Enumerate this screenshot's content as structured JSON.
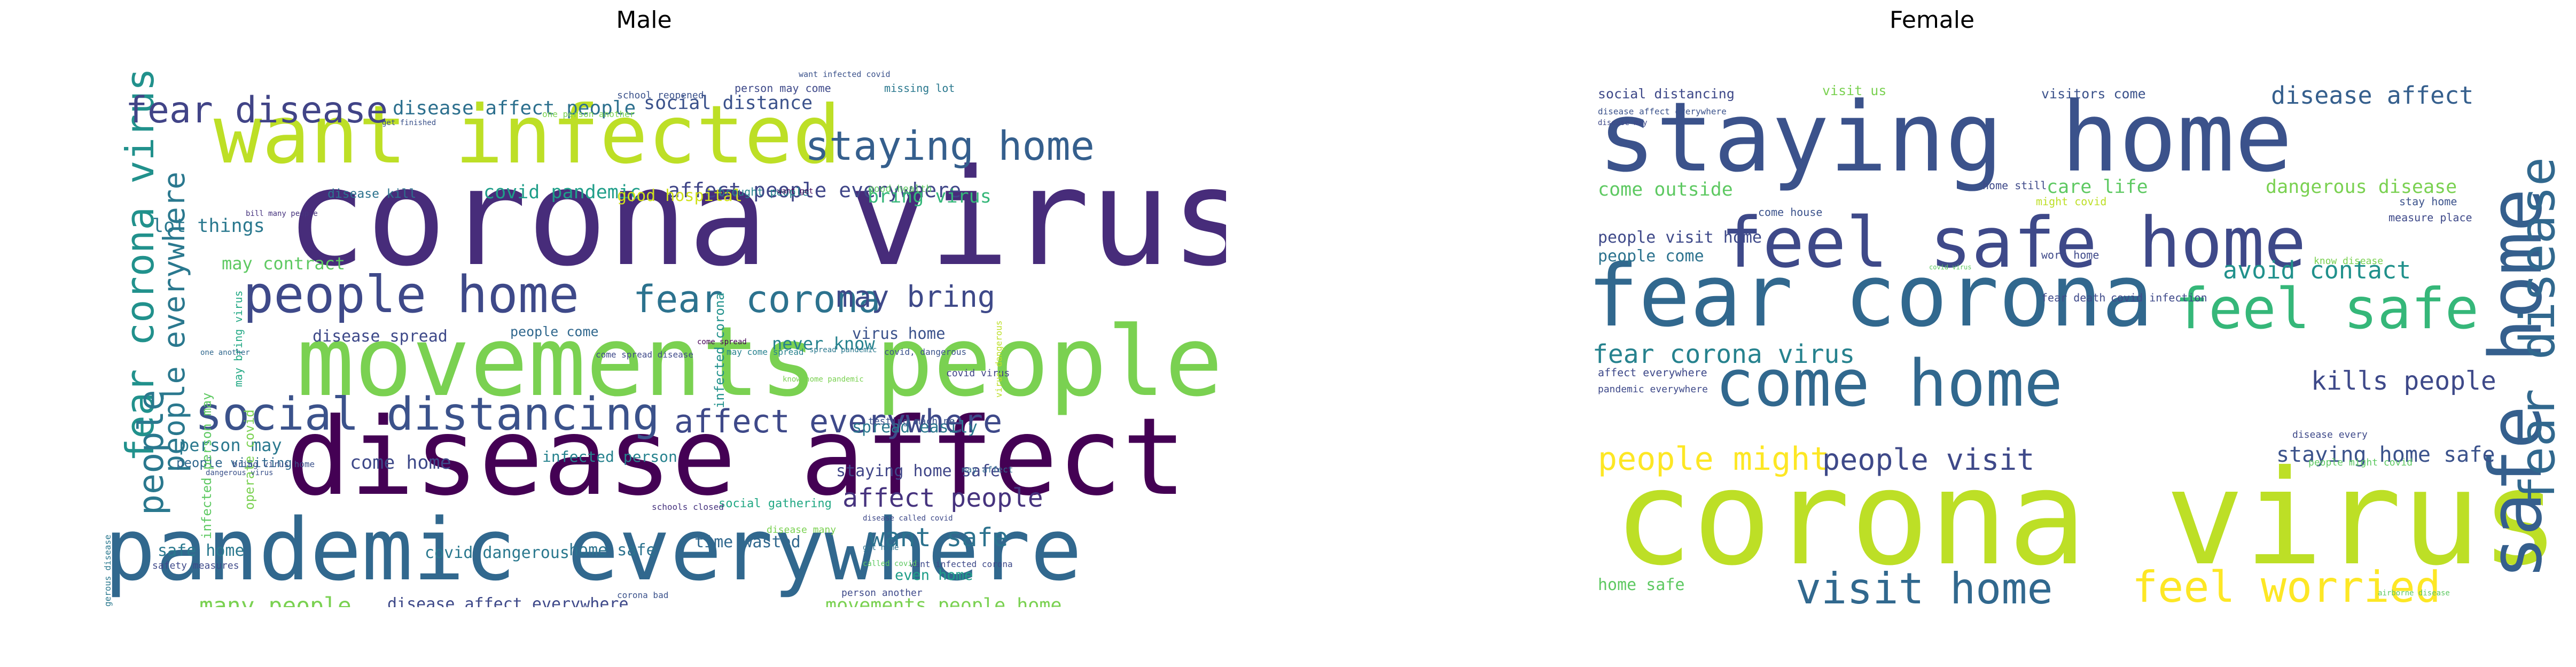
{
  "chart_data": [
    {
      "type": "wordcloud",
      "title": "Male",
      "words": [
        {
          "text": "corona virus",
          "color": "#472c7a"
        },
        {
          "text": "disease affect",
          "color": "#440154"
        },
        {
          "text": "pandemic everywhere",
          "color": "#31688e"
        },
        {
          "text": "movements people",
          "color": "#7ad151"
        },
        {
          "text": "want infected",
          "color": "#bddf26"
        },
        {
          "text": "social distancing",
          "color": "#3b528b"
        },
        {
          "text": "people home",
          "color": "#3e4989"
        },
        {
          "text": "fear corona virus",
          "color": "#21918c"
        },
        {
          "text": "fear disease",
          "color": "#414487"
        },
        {
          "text": "staying home",
          "color": "#355f8d"
        },
        {
          "text": "affect everywhere",
          "color": "#3e4989"
        },
        {
          "text": "fear corona",
          "color": "#2c728e"
        },
        {
          "text": "may bring",
          "color": "#3e4989"
        },
        {
          "text": "people everywhere",
          "color": "#2a788e"
        },
        {
          "text": "affect people everywhere",
          "color": "#404688"
        },
        {
          "text": "disease affect people",
          "color": "#2d708e"
        },
        {
          "text": "social distance",
          "color": "#3b528b"
        },
        {
          "text": "affect people",
          "color": "#46337e"
        },
        {
          "text": "want safe",
          "color": "#2c728e"
        },
        {
          "text": "people",
          "color": "#2a788e"
        },
        {
          "text": "covid pandemic",
          "color": "#1f9e89"
        },
        {
          "text": "bring virus",
          "color": "#35b779"
        },
        {
          "text": "good hospital",
          "color": "#d0e11c"
        },
        {
          "text": "lot things",
          "color": "#2a788e"
        },
        {
          "text": "may contract",
          "color": "#5ec962"
        },
        {
          "text": "never know",
          "color": "#26828e"
        },
        {
          "text": "virus home",
          "color": "#3b528b"
        },
        {
          "text": "disease spread",
          "color": "#3e4989"
        },
        {
          "text": "people come",
          "color": "#31688e"
        },
        {
          "text": "come home",
          "color": "#3e4989"
        },
        {
          "text": "infected person",
          "color": "#26828e"
        },
        {
          "text": "staying home safe",
          "color": "#404688"
        },
        {
          "text": "spread easily",
          "color": "#2a788e"
        },
        {
          "text": "person may",
          "color": "#2a788e"
        },
        {
          "text": "safe home",
          "color": "#2a788e"
        },
        {
          "text": "covid dangerous",
          "color": "#2a788e"
        },
        {
          "text": "home safe",
          "color": "#2c728e"
        },
        {
          "text": "time wasted",
          "color": "#31688e"
        },
        {
          "text": "even home",
          "color": "#1f9e89"
        },
        {
          "text": "many people",
          "color": "#7ad151"
        },
        {
          "text": "disease affect everywhere",
          "color": "#3e4989"
        },
        {
          "text": "movements people home",
          "color": "#7ad151"
        },
        {
          "text": "infected corona virus",
          "color": "#414487"
        },
        {
          "text": "dangerous disease",
          "color": "#2a788e"
        },
        {
          "text": "disease kill",
          "color": "#2c728e"
        },
        {
          "text": "infected corona",
          "color": "#21918c"
        },
        {
          "text": "people visiting",
          "color": "#31688e"
        },
        {
          "text": "infected person may",
          "color": "#5ec962"
        },
        {
          "text": "operate covid",
          "color": "#7ad151"
        },
        {
          "text": "may bring virus",
          "color": "#22a884"
        },
        {
          "text": "want infected covid",
          "color": "#3b528b"
        },
        {
          "text": "person may come",
          "color": "#3e4989"
        },
        {
          "text": "missing lot",
          "color": "#2a788e"
        },
        {
          "text": "school reopened",
          "color": "#3b528b"
        },
        {
          "text": "get finished",
          "color": "#3b528b"
        },
        {
          "text": "one person another",
          "color": "#7ad151"
        },
        {
          "text": "brought people",
          "color": "#26828e"
        },
        {
          "text": "good health",
          "color": "#5ec962"
        },
        {
          "text": "want get",
          "color": "#440154"
        },
        {
          "text": "bill many people",
          "color": "#46337e"
        },
        {
          "text": "safety measures",
          "color": "#3e4989"
        },
        {
          "text": "social gathering",
          "color": "#22a884"
        },
        {
          "text": "schools closed",
          "color": "#46337e"
        },
        {
          "text": "testing machine",
          "color": "#3b528b"
        },
        {
          "text": "covid virus",
          "color": "#414487"
        },
        {
          "text": "may affect",
          "color": "#31688e"
        },
        {
          "text": "disease many",
          "color": "#7ad151"
        },
        {
          "text": "person another",
          "color": "#3e4989"
        },
        {
          "text": "corona bad",
          "color": "#3b528b"
        },
        {
          "text": "coronavirus dangerous disease",
          "color": "#3b528b"
        },
        {
          "text": "safely family",
          "color": "#3b528b"
        },
        {
          "text": "missing lot things",
          "color": "#5ec962"
        },
        {
          "text": "affect even home",
          "color": "#3e4989"
        },
        {
          "text": "want infected corona",
          "color": "#3e4989"
        },
        {
          "text": "bring virus home",
          "color": "#3b528b"
        },
        {
          "text": "dangerous virus",
          "color": "#3b528b"
        },
        {
          "text": "virus dangerous",
          "color": "#bddf26"
        },
        {
          "text": "one another",
          "color": "#31688e"
        },
        {
          "text": "come spread",
          "color": "#440154"
        },
        {
          "text": "may come spread",
          "color": "#26828e"
        },
        {
          "text": "covid, dangerous",
          "color": "#3b528b"
        },
        {
          "text": "come spread disease",
          "color": "#3e4989"
        },
        {
          "text": "spread pandemic",
          "color": "#2a788e"
        },
        {
          "text": "know home pandemic",
          "color": "#7ad151"
        },
        {
          "text": "get home",
          "color": "#2c728e"
        },
        {
          "text": "called covid",
          "color": "#5ec962"
        },
        {
          "text": "dangerous disease",
          "color": "#31688e"
        },
        {
          "text": "disease called covid",
          "color": "#3e4989"
        }
      ]
    },
    {
      "type": "wordcloud",
      "title": "Female",
      "words": [
        {
          "text": "corona virus",
          "color": "#bddf26"
        },
        {
          "text": "staying home",
          "color": "#3b528b"
        },
        {
          "text": "fear corona",
          "color": "#31688e"
        },
        {
          "text": "safe home",
          "color": "#355f8d"
        },
        {
          "text": "feel safe home",
          "color": "#3e4989"
        },
        {
          "text": "come home",
          "color": "#31688e"
        },
        {
          "text": "feel safe",
          "color": "#35b779"
        },
        {
          "text": "fear disease",
          "color": "#31688e"
        },
        {
          "text": "visit home",
          "color": "#31688e"
        },
        {
          "text": "feel worried",
          "color": "#fde725"
        },
        {
          "text": "people might",
          "color": "#fde725"
        },
        {
          "text": "people visit",
          "color": "#3e4989"
        },
        {
          "text": "disease affect",
          "color": "#355f8d"
        },
        {
          "text": "fear corona virus",
          "color": "#26828e"
        },
        {
          "text": "kills people",
          "color": "#3e4989"
        },
        {
          "text": "avoid contact",
          "color": "#21918c"
        },
        {
          "text": "staying home safe",
          "color": "#3b528b"
        },
        {
          "text": "dangerous disease",
          "color": "#7ad151"
        },
        {
          "text": "care life",
          "color": "#5ec962"
        },
        {
          "text": "come outside",
          "color": "#5ec962"
        },
        {
          "text": "people visit home",
          "color": "#3e4989"
        },
        {
          "text": "people come",
          "color": "#2c728e"
        },
        {
          "text": "social distancing",
          "color": "#3e4989"
        },
        {
          "text": "visit us",
          "color": "#7ad151"
        },
        {
          "text": "visitors come",
          "color": "#3b528b"
        },
        {
          "text": "stay home",
          "color": "#3b528b"
        },
        {
          "text": "measure place",
          "color": "#3e4989"
        },
        {
          "text": "home still",
          "color": "#3e4989"
        },
        {
          "text": "might covid",
          "color": "#bddf26"
        },
        {
          "text": "come house",
          "color": "#3b528b"
        },
        {
          "text": "work home",
          "color": "#3e4989"
        },
        {
          "text": "affect everywhere",
          "color": "#3e4989"
        },
        {
          "text": "fear death",
          "color": "#3e4989"
        },
        {
          "text": "covid infection",
          "color": "#3e4989"
        },
        {
          "text": "know disease",
          "color": "#7ad151"
        },
        {
          "text": "people might covid",
          "color": "#5ec962"
        },
        {
          "text": "disease every",
          "color": "#3e4989"
        },
        {
          "text": "pandemic everywhere",
          "color": "#3e4989"
        },
        {
          "text": "home safe",
          "color": "#5ec962"
        },
        {
          "text": "disease affect everywhere",
          "color": "#3b528b"
        },
        {
          "text": "disease may",
          "color": "#3e4989"
        },
        {
          "text": "covid virus",
          "color": "#5ec962"
        },
        {
          "text": "airborne disease",
          "color": "#5ec962"
        }
      ]
    }
  ]
}
